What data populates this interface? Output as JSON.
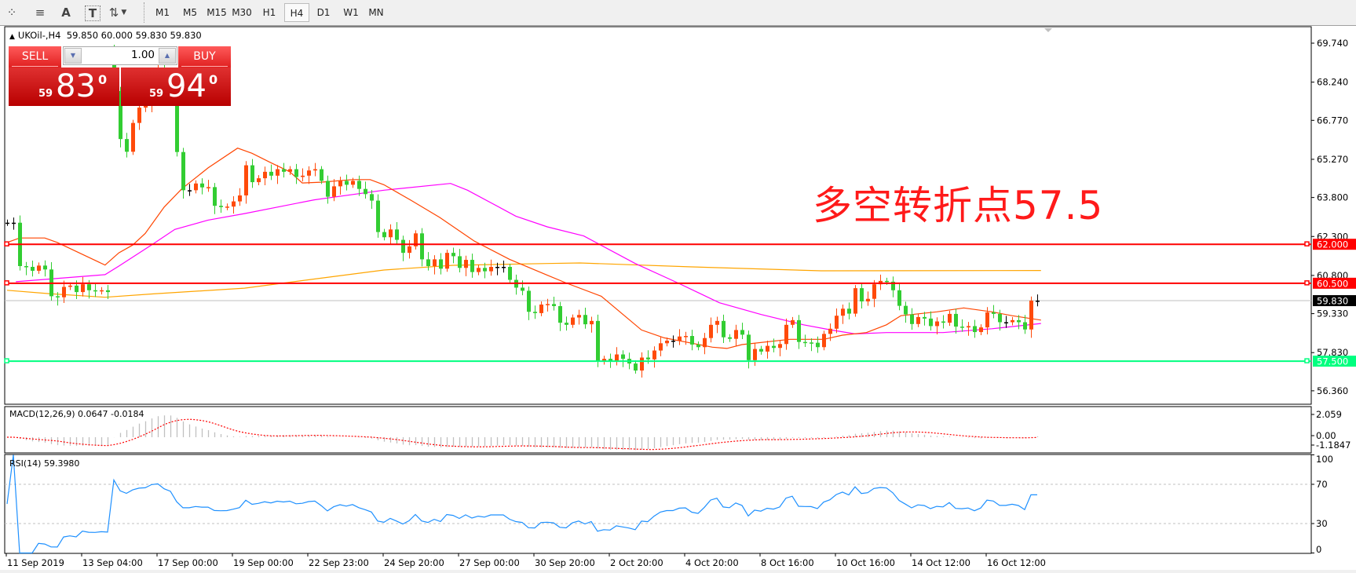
{
  "toolbar": {
    "tools": [
      {
        "name": "elliott-wave-icon",
        "glyph": "⁘"
      },
      {
        "name": "fibonacci-fan-icon",
        "glyph": "≡"
      },
      {
        "name": "text-tool-icon",
        "glyph": "A"
      },
      {
        "name": "text-label-icon",
        "glyph": "T"
      },
      {
        "name": "arrows-icon",
        "glyph": "⇅"
      }
    ],
    "timeframes": [
      "M1",
      "M5",
      "M15",
      "M30",
      "H1",
      "H4",
      "D1",
      "W1",
      "MN"
    ],
    "active_timeframe": "H4"
  },
  "chart": {
    "symbol": "UKOil-,H4",
    "ohlc": "59.850 60.000 59.830 59.830"
  },
  "trade_panel": {
    "sell_label": "SELL",
    "buy_label": "BUY",
    "lot": "1.00",
    "sell_small": "59",
    "sell_big": "83",
    "sell_sup": "0",
    "buy_small": "59",
    "buy_big": "94",
    "buy_sup": "0"
  },
  "annotation": "多空转折点57.5",
  "indicators": {
    "macd_label": "MACD(12,26,9) 0.0647 -0.0184",
    "rsi_label": "RSI(14) 59.3980"
  },
  "colors": {
    "up_candle": "#ff4a0a",
    "down_candle": "#32cd32",
    "ma_fast": "#ff4500",
    "ma_mid": "#ff00ff",
    "ma_slow": "#ffa500",
    "resistance_line": "#ff0000",
    "support_line": "#00ff7f",
    "rsi_line": "#1e90ff",
    "macd_signal": "#ff0000",
    "macd_hist": "#c0c0c0"
  },
  "chart_data": {
    "type": "candlestick",
    "first_open": 62.83,
    "open_overrides": [
      {
        "bar": 17,
        "open": 69.4
      }
    ],
    "close": [
      62.83,
      62.83,
      61.16,
      61.13,
      60.98,
      61.18,
      61.03,
      60.0,
      59.96,
      60.36,
      60.41,
      60.16,
      60.46,
      60.23,
      60.19,
      60.23,
      60.16,
      67.9,
      66.05,
      65.56,
      66.67,
      67.26,
      67.4,
      68.5,
      68.8,
      68.0,
      67.6,
      65.55,
      64.08,
      64.08,
      64.34,
      64.19,
      64.2,
      63.48,
      63.43,
      63.45,
      63.65,
      63.88,
      65.04,
      64.39,
      64.54,
      64.79,
      64.64,
      64.89,
      64.79,
      64.89,
      64.59,
      64.64,
      64.84,
      64.89,
      64.44,
      63.83,
      64.23,
      64.44,
      64.29,
      64.44,
      64.13,
      63.93,
      63.68,
      62.47,
      62.27,
      62.57,
      62.17,
      61.67,
      61.92,
      62.42,
      61.42,
      61.16,
      61.42,
      61.06,
      61.67,
      61.54,
      61.09,
      61.4,
      60.93,
      61.09,
      60.96,
      61.13,
      61.13,
      61.13,
      60.63,
      60.33,
      60.21,
      59.4,
      59.35,
      59.68,
      59.7,
      59.62,
      58.98,
      58.9,
      59.18,
      59.28,
      58.92,
      59.05,
      57.49,
      57.59,
      57.51,
      57.76,
      57.59,
      57.41,
      57.14,
      57.64,
      57.57,
      57.91,
      58.19,
      58.29,
      58.29,
      58.45,
      58.47,
      58.14,
      58.04,
      58.39,
      58.9,
      59.05,
      58.42,
      58.36,
      58.7,
      58.52,
      57.54,
      57.97,
      57.87,
      58.09,
      58.01,
      58.16,
      58.9,
      59.08,
      58.24,
      58.22,
      58.21,
      58.04,
      58.55,
      58.75,
      59.25,
      59.52,
      59.33,
      60.31,
      59.8,
      59.9,
      60.46,
      60.59,
      60.56,
      60.23,
      59.63,
      59.3,
      58.93,
      59.2,
      59.14,
      58.85,
      59.03,
      58.98,
      59.32,
      58.83,
      58.8,
      58.85,
      58.62,
      58.8,
      59.38,
      59.32,
      59.0,
      59.0,
      59.08,
      59.0,
      58.72,
      59.83,
      59.83
    ],
    "moving_averages": {
      "fast": [
        [
          0,
          62.07
        ],
        [
          2,
          62.24
        ],
        [
          6,
          62.24
        ],
        [
          8,
          62.07
        ],
        [
          15.6,
          61.2
        ],
        [
          17.8,
          61.67
        ],
        [
          20,
          61.97
        ],
        [
          22,
          62.42
        ],
        [
          25,
          63.43
        ],
        [
          27.8,
          64.13
        ],
        [
          32,
          64.94
        ],
        [
          36.7,
          65.7
        ],
        [
          39,
          65.5
        ],
        [
          42,
          65.14
        ],
        [
          45,
          64.79
        ],
        [
          47,
          64.36
        ],
        [
          50,
          64.39
        ],
        [
          55,
          64.49
        ],
        [
          57.8,
          64.49
        ],
        [
          60,
          64.29
        ],
        [
          64.4,
          63.68
        ],
        [
          68.9,
          63.03
        ],
        [
          74.4,
          62.12
        ],
        [
          80,
          61.42
        ],
        [
          86,
          60.81
        ],
        [
          89,
          60.51
        ],
        [
          94.6,
          60.0
        ],
        [
          101,
          58.7
        ],
        [
          104.6,
          58.4
        ],
        [
          112.3,
          58.04
        ],
        [
          114.6,
          57.99
        ],
        [
          117,
          58.14
        ],
        [
          124.6,
          58.34
        ],
        [
          130,
          58.34
        ],
        [
          133,
          58.5
        ],
        [
          136.8,
          58.6
        ],
        [
          140,
          58.9
        ],
        [
          142.3,
          59.25
        ],
        [
          148,
          59.4
        ],
        [
          152.3,
          59.55
        ],
        [
          156.8,
          59.4
        ],
        [
          160,
          59.25
        ],
        [
          164.6,
          59.08
        ]
      ],
      "mid": [
        [
          1.4,
          60.56
        ],
        [
          15.6,
          60.83
        ],
        [
          17.8,
          61.16
        ],
        [
          23.3,
          62.02
        ],
        [
          26.7,
          62.57
        ],
        [
          32,
          62.93
        ],
        [
          37.8,
          63.18
        ],
        [
          48.9,
          63.71
        ],
        [
          60,
          64.08
        ],
        [
          70.6,
          64.34
        ],
        [
          73.3,
          64.08
        ],
        [
          81,
          63.08
        ],
        [
          86,
          62.67
        ],
        [
          91.8,
          62.32
        ],
        [
          100,
          61.26
        ],
        [
          106.8,
          60.51
        ],
        [
          113.4,
          59.75
        ],
        [
          120,
          59.3
        ],
        [
          126.8,
          58.9
        ],
        [
          131.2,
          58.7
        ],
        [
          135,
          58.55
        ],
        [
          140,
          58.6
        ],
        [
          149,
          58.6
        ],
        [
          156.8,
          58.75
        ],
        [
          164.6,
          58.95
        ]
      ],
      "slow": [
        [
          0,
          60.23
        ],
        [
          6.7,
          60.1
        ],
        [
          15.6,
          59.96
        ],
        [
          23.3,
          60.09
        ],
        [
          37.8,
          60.31
        ],
        [
          48.9,
          60.66
        ],
        [
          60,
          61.01
        ],
        [
          71,
          61.19
        ],
        [
          86,
          61.26
        ],
        [
          91.2,
          61.28
        ],
        [
          109,
          61.13
        ],
        [
          129.6,
          60.98
        ],
        [
          164.6,
          60.99
        ]
      ]
    },
    "horizontal_lines": [
      {
        "price": 62.0,
        "label": "62.000",
        "color": "#ff0000"
      },
      {
        "price": 60.5,
        "label": "60.500",
        "color": "#ff0000"
      },
      {
        "price": 57.5,
        "label": "57.500",
        "color": "#00ff7f"
      }
    ],
    "current_price": {
      "price": 59.83,
      "label": "59.830"
    },
    "y_ticks": [
      "69.740",
      "68.240",
      "66.770",
      "65.270",
      "63.800",
      "62.300",
      "60.800",
      "59.330",
      "57.830",
      "56.360"
    ],
    "ylim": [
      56.0,
      70.35
    ],
    "x_ticks": [
      "11 Sep 2019",
      "13 Sep 04:00",
      "17 Sep 00:00",
      "19 Sep 00:00",
      "22 Sep 23:00",
      "24 Sep 20:00",
      "27 Sep 00:00",
      "30 Sep 20:00",
      "2 Oct 20:00",
      "4 Oct 20:00",
      "8 Oct 16:00",
      "10 Oct 16:00",
      "14 Oct 12:00",
      "16 Oct 12:00"
    ],
    "macd": {
      "y_ticks": [
        "2.059",
        "0.00",
        "-1.1847"
      ],
      "ylim": [
        -1.1847,
        2.059
      ]
    },
    "rsi": {
      "y_ticks": [
        "100",
        "70",
        "30",
        "0"
      ],
      "levels": [
        70,
        30
      ],
      "ylim": [
        0,
        100
      ]
    }
  }
}
